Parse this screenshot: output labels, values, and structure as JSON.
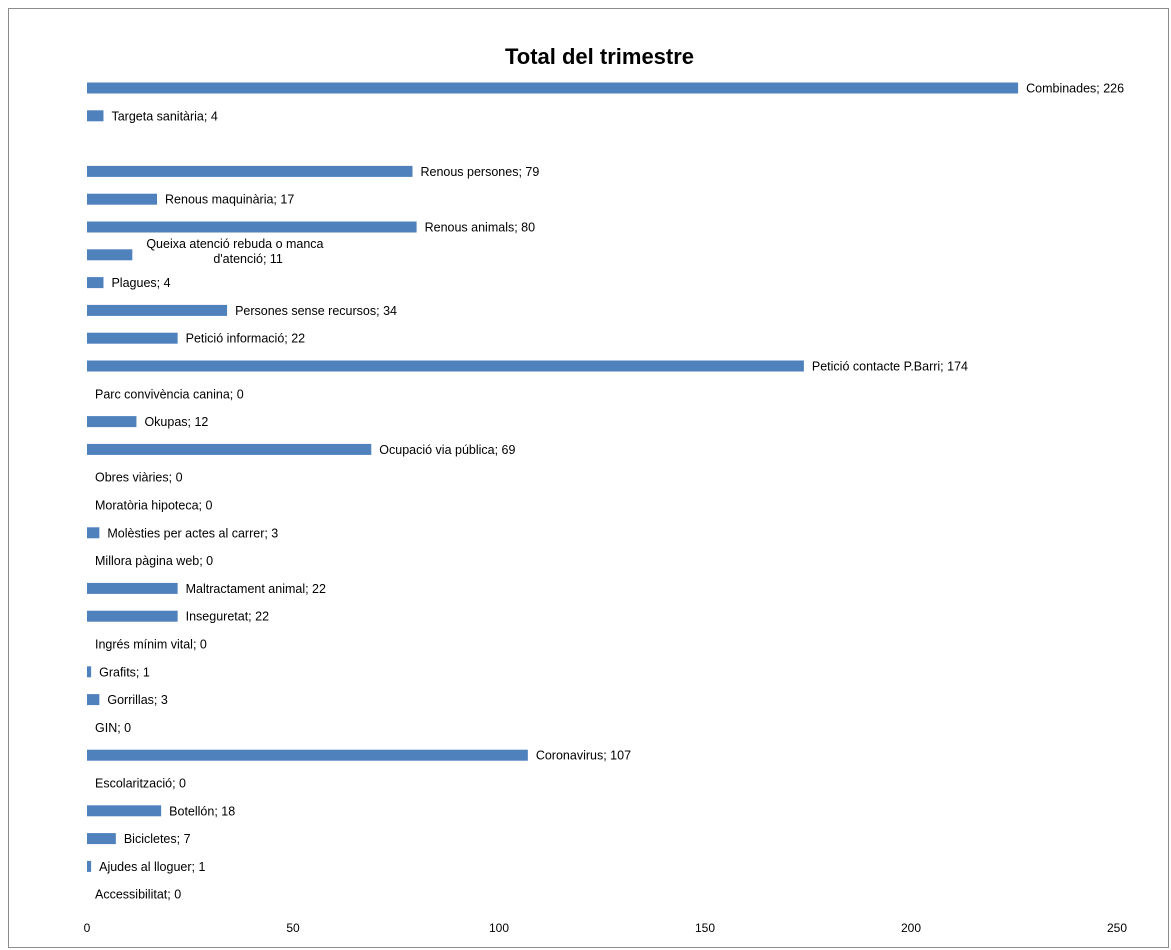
{
  "chart_data": {
    "type": "bar",
    "orientation": "horizontal",
    "title": "Total del trimestre",
    "xlim": [
      0,
      250
    ],
    "xticks": [
      0,
      50,
      100,
      150,
      200,
      250
    ],
    "grid": false,
    "legend": "none",
    "bar_color": "#4f81bd",
    "categories": [
      "Combinades",
      "Targeta sanitària",
      "",
      "Renous persones",
      "Renous maquinària",
      "Renous animals",
      "Queixa atenció rebuda o manca d'atenció",
      "Plagues",
      "Persones sense recursos",
      "Petició informació",
      "Petició contacte P.Barri",
      "Parc convivència canina",
      "Okupas",
      "Ocupació via pública",
      "Obres viàries",
      "Moratòria hipoteca",
      "Molèsties per actes al carrer",
      "Millora pàgina web",
      "Maltractament animal",
      "Inseguretat",
      "Ingrés mínim vital",
      "Grafits",
      "Gorrillas",
      "GIN",
      "Coronavirus",
      "Escolarització",
      "Botellón",
      "Bicicletes",
      "Ajudes al lloguer",
      "Accessibilitat"
    ],
    "values": [
      226,
      4,
      null,
      79,
      17,
      80,
      11,
      4,
      34,
      22,
      174,
      0,
      12,
      69,
      0,
      0,
      3,
      0,
      22,
      22,
      0,
      1,
      3,
      0,
      107,
      0,
      18,
      7,
      1,
      0
    ],
    "labels": [
      [
        "Combinades; 226"
      ],
      [
        "Targeta sanitària; 4"
      ],
      [],
      [
        "Renous persones; 79"
      ],
      [
        "Renous maquinària; 17"
      ],
      [
        "Renous animals; 80"
      ],
      [
        "Queixa atenció rebuda o manca",
        "d'atenció; 11"
      ],
      [
        "Plagues; 4"
      ],
      [
        "Persones sense recursos; 34"
      ],
      [
        "Petició informació; 22"
      ],
      [
        "Petició contacte P.Barri; 174"
      ],
      [
        "Parc convivència canina; 0"
      ],
      [
        "Okupas; 12"
      ],
      [
        "Ocupació via pública; 69"
      ],
      [
        "Obres viàries; 0"
      ],
      [
        "Moratòria hipoteca; 0"
      ],
      [
        "Molèsties per actes al carrer; 3"
      ],
      [
        "Millora pàgina web; 0"
      ],
      [
        "Maltractament animal; 22"
      ],
      [
        "Inseguretat; 22"
      ],
      [
        "Ingrés mínim vital; 0"
      ],
      [
        "Grafits; 1"
      ],
      [
        "Gorrillas; 3"
      ],
      [
        "GIN; 0"
      ],
      [
        "Coronavirus; 107"
      ],
      [
        "Escolarització; 0"
      ],
      [
        "Botellón; 18"
      ],
      [
        "Bicicletes; 7"
      ],
      [
        "Ajudes al lloguer; 1"
      ],
      [
        "Accessibilitat; 0"
      ]
    ]
  }
}
